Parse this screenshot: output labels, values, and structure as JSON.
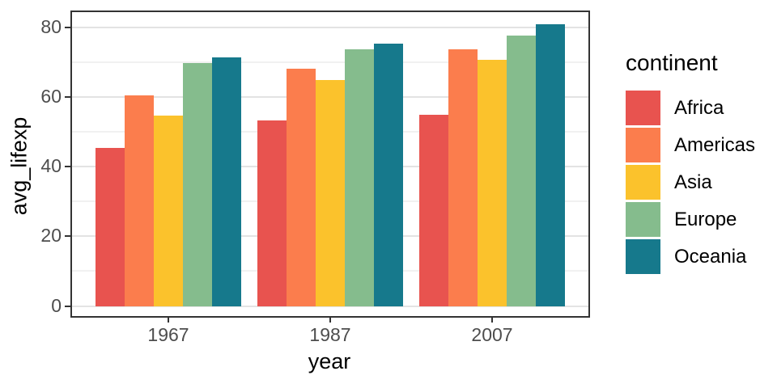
{
  "figure": {
    "background": "#FFFFFF",
    "panel_border_color": "#333333",
    "grid_major_color": "#E3E3E3",
    "grid_minor_color": "#F1F1F1",
    "tick_label_color": "#4D4D4D",
    "axis_title_color": "#000000"
  },
  "chart_data": {
    "type": "bar",
    "title": "",
    "xlabel": "year",
    "ylabel": "avg_lifexp",
    "categories": [
      "1967",
      "1987",
      "2007"
    ],
    "series": [
      {
        "name": "Africa",
        "color": "#E8534F",
        "values": [
          45.3,
          53.3,
          54.8
        ]
      },
      {
        "name": "Americas",
        "color": "#FB7D4D",
        "values": [
          60.4,
          68.1,
          73.6
        ]
      },
      {
        "name": "Asia",
        "color": "#FBC22C",
        "values": [
          54.7,
          64.9,
          70.7
        ]
      },
      {
        "name": "Europe",
        "color": "#85BC8D",
        "values": [
          69.7,
          73.6,
          77.6
        ]
      },
      {
        "name": "Oceania",
        "color": "#16798C",
        "values": [
          71.3,
          75.3,
          80.7
        ]
      }
    ],
    "y_ticks": [
      0,
      20,
      40,
      60,
      80
    ],
    "y_minor_ticks": [
      10,
      30,
      50,
      70
    ],
    "ylim": [
      0,
      84.5
    ],
    "grid": "on",
    "legend": {
      "title": "continent",
      "position": "right"
    }
  }
}
